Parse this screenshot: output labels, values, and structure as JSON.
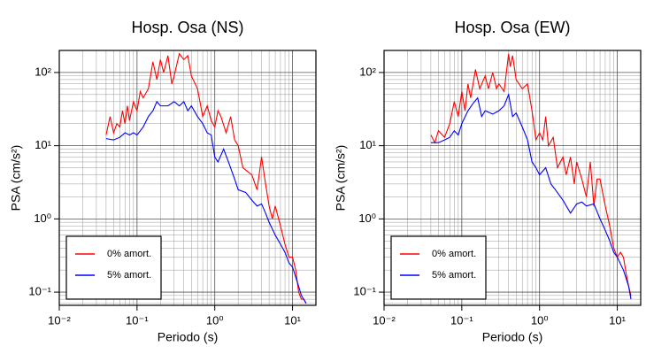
{
  "chart_data": [
    {
      "type": "line",
      "title": "Hosp. Osa (NS)",
      "x_label": "Periodo (s)",
      "y_label": "PSA (cm/s²)",
      "xlog": true,
      "ylog": true,
      "grid": true,
      "minor_grid": true,
      "legend": "lower left",
      "xlim": [
        0.01,
        20
      ],
      "ylim": [
        0.066,
        200
      ],
      "xticks": [
        {
          "value": 0.01,
          "label": "10⁻²"
        },
        {
          "value": 0.1,
          "label": "10⁻¹"
        },
        {
          "value": 1,
          "label": "10⁰"
        },
        {
          "value": 10,
          "label": "10¹"
        }
      ],
      "yticks": [
        {
          "value": 0.1,
          "label": "10⁻¹"
        },
        {
          "value": 1,
          "label": "10⁰"
        },
        {
          "value": 10,
          "label": "10¹"
        },
        {
          "value": 100,
          "label": "10²"
        }
      ],
      "series": [
        {
          "name": "0% amort.",
          "color": "#ff0000",
          "x": [
            0.04,
            0.045,
            0.05,
            0.055,
            0.06,
            0.065,
            0.07,
            0.075,
            0.08,
            0.09,
            0.1,
            0.11,
            0.12,
            0.14,
            0.16,
            0.18,
            0.2,
            0.22,
            0.25,
            0.28,
            0.3,
            0.35,
            0.4,
            0.45,
            0.5,
            0.6,
            0.7,
            0.8,
            0.9,
            1.0,
            1.1,
            1.2,
            1.4,
            1.6,
            1.8,
            2.0,
            2.3,
            2.6,
            3.0,
            3.5,
            4.0,
            4.5,
            5.0,
            5.5,
            6.0,
            7.0,
            8.0,
            9,
            10,
            11,
            12,
            13,
            14,
            15
          ],
          "values": [
            14,
            25,
            15,
            20,
            18,
            30,
            20,
            35,
            22,
            40,
            30,
            55,
            45,
            60,
            140,
            80,
            150,
            100,
            170,
            70,
            90,
            180,
            150,
            170,
            90,
            60,
            25,
            35,
            22,
            18,
            30,
            25,
            15,
            25,
            12,
            10,
            5,
            4.5,
            4,
            2.5,
            7,
            3,
            1.5,
            1.0,
            1.5,
            0.8,
            0.45,
            0.3,
            0.3,
            0.2,
            0.1,
            0.08,
            0.08,
            0.07
          ]
        },
        {
          "name": "5% amort.",
          "color": "#0000ff",
          "x": [
            0.04,
            0.05,
            0.06,
            0.07,
            0.08,
            0.09,
            0.1,
            0.12,
            0.14,
            0.16,
            0.18,
            0.2,
            0.25,
            0.3,
            0.35,
            0.4,
            0.45,
            0.5,
            0.6,
            0.7,
            0.8,
            0.9,
            1.0,
            1.1,
            1.3,
            1.5,
            1.8,
            2.0,
            2.5,
            3.0,
            3.5,
            4.0,
            4.5,
            5.0,
            6.0,
            7.0,
            8,
            9,
            10,
            11,
            12,
            13,
            15
          ],
          "values": [
            12.5,
            12,
            13,
            15,
            14,
            15,
            14,
            18,
            25,
            30,
            40,
            35,
            35,
            40,
            35,
            40,
            30,
            35,
            25,
            20,
            15,
            14,
            7,
            6,
            9,
            6,
            3.5,
            2.5,
            2.3,
            1.8,
            1.5,
            1.6,
            1.2,
            0.9,
            0.6,
            0.45,
            0.35,
            0.25,
            0.22,
            0.16,
            0.12,
            0.09,
            0.07
          ]
        }
      ]
    },
    {
      "type": "line",
      "title": "Hosp. Osa (EW)",
      "x_label": "Periodo (s)",
      "y_label": "PSA (cm/s²)",
      "xlog": true,
      "ylog": true,
      "grid": true,
      "minor_grid": true,
      "legend": "lower left",
      "xlim": [
        0.01,
        20
      ],
      "ylim": [
        0.066,
        200
      ],
      "xticks": [
        {
          "value": 0.01,
          "label": "10⁻²"
        },
        {
          "value": 0.1,
          "label": "10⁻¹"
        },
        {
          "value": 1,
          "label": "10⁰"
        },
        {
          "value": 10,
          "label": "10¹"
        }
      ],
      "yticks": [
        {
          "value": 0.1,
          "label": "10⁻¹"
        },
        {
          "value": 1,
          "label": "10⁰"
        },
        {
          "value": 10,
          "label": "10¹"
        },
        {
          "value": 100,
          "label": "10²"
        }
      ],
      "series": [
        {
          "name": "0% amort.",
          "color": "#ff0000",
          "x": [
            0.04,
            0.045,
            0.05,
            0.06,
            0.07,
            0.08,
            0.09,
            0.1,
            0.11,
            0.12,
            0.13,
            0.15,
            0.17,
            0.2,
            0.22,
            0.25,
            0.28,
            0.3,
            0.35,
            0.4,
            0.42,
            0.45,
            0.5,
            0.6,
            0.7,
            0.8,
            0.9,
            1.0,
            1.1,
            1.2,
            1.3,
            1.5,
            1.7,
            2.0,
            2.2,
            2.5,
            2.8,
            3.0,
            3.5,
            4,
            4.5,
            5,
            5.5,
            6,
            7,
            8,
            9,
            10,
            11,
            12,
            13,
            14,
            15
          ],
          "values": [
            14,
            11,
            16,
            13,
            20,
            40,
            25,
            55,
            30,
            70,
            45,
            110,
            60,
            90,
            60,
            100,
            60,
            70,
            55,
            180,
            120,
            170,
            80,
            60,
            70,
            30,
            12,
            15,
            12,
            25,
            10,
            13,
            5,
            7,
            4,
            7,
            3,
            6,
            3.5,
            2,
            6,
            1.5,
            3.5,
            3.5,
            1.5,
            0.8,
            0.4,
            0.3,
            0.35,
            0.3,
            0.18,
            0.12,
            0.09
          ]
        },
        {
          "name": "5% amort.",
          "color": "#0000ff",
          "x": [
            0.04,
            0.05,
            0.06,
            0.07,
            0.08,
            0.09,
            0.1,
            0.12,
            0.14,
            0.16,
            0.18,
            0.2,
            0.25,
            0.3,
            0.35,
            0.4,
            0.45,
            0.5,
            0.6,
            0.7,
            0.8,
            0.9,
            1.0,
            1.2,
            1.4,
            1.6,
            2.0,
            2.5,
            3,
            3.5,
            4,
            5,
            6,
            7,
            8,
            9,
            10,
            12,
            14,
            15
          ],
          "values": [
            11,
            11,
            12,
            13,
            16,
            14,
            20,
            30,
            38,
            45,
            25,
            30,
            27,
            30,
            35,
            50,
            25,
            28,
            18,
            12,
            6,
            5,
            4,
            5,
            3,
            2.5,
            1.8,
            1.2,
            1.6,
            1.7,
            1.5,
            1.6,
            1.0,
            0.7,
            0.5,
            0.35,
            0.3,
            0.2,
            0.12,
            0.08
          ]
        }
      ]
    }
  ]
}
